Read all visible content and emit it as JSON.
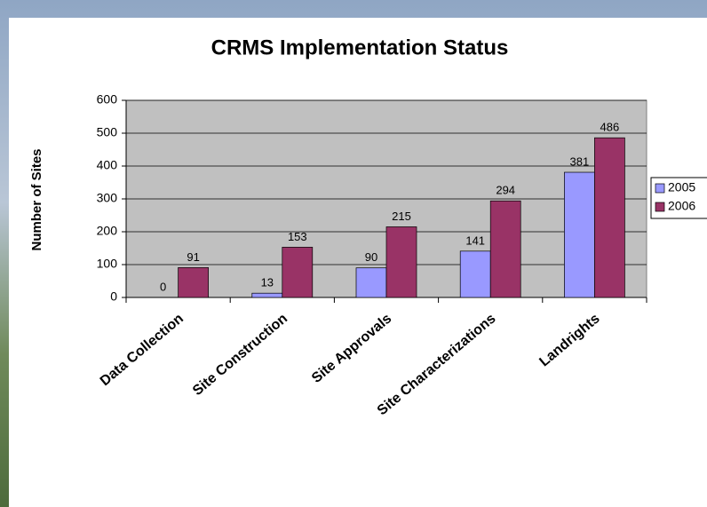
{
  "chart_data": {
    "type": "bar",
    "title": "CRMS Implementation Status",
    "y_label": "Number of Sites",
    "categories": [
      "Data Collection",
      "Site Construction",
      "Site Approvals",
      "Site Characterizations",
      "Landrights"
    ],
    "series": [
      {
        "name": "2005",
        "color": "#9999ff",
        "values": [
          0,
          13,
          90,
          141,
          381
        ]
      },
      {
        "name": "2006",
        "color": "#993366",
        "values": [
          91,
          153,
          215,
          294,
          486
        ]
      }
    ],
    "ylim": [
      0,
      600
    ],
    "yticks": [
      0,
      100,
      200,
      300,
      400,
      500,
      600
    ],
    "grid": true,
    "legend": "right"
  }
}
